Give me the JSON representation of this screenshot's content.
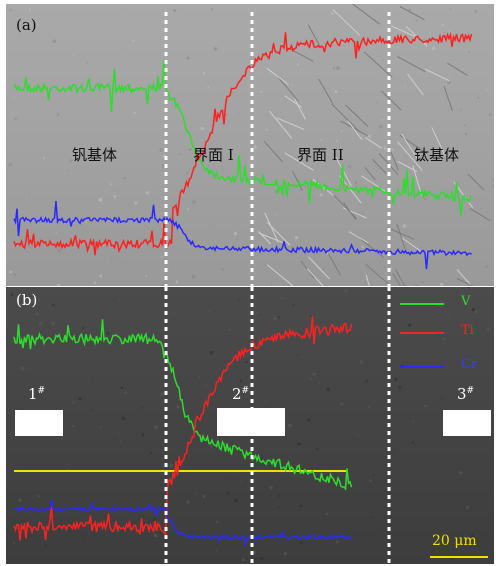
{
  "panel_a": {
    "label": "(a)",
    "regions": [
      "钒基体",
      "界面 I",
      "界面 II",
      "钛基体"
    ]
  },
  "panel_b": {
    "label": "(b)",
    "samples": [
      {
        "num": "1",
        "mark": "#"
      },
      {
        "num": "2",
        "mark": "#"
      },
      {
        "num": "3",
        "mark": "#"
      }
    ],
    "legend": [
      {
        "name": "V",
        "color": "#2edc2e"
      },
      {
        "name": "Ti",
        "color": "#ff2020"
      },
      {
        "name": "Cr",
        "color": "#2a2aff"
      }
    ],
    "scale_bar": "20 μm"
  },
  "colors": {
    "V": "#2edc2e",
    "Ti": "#ff2020",
    "Cr": "#2a2aff",
    "scale": "#f0e000"
  }
}
